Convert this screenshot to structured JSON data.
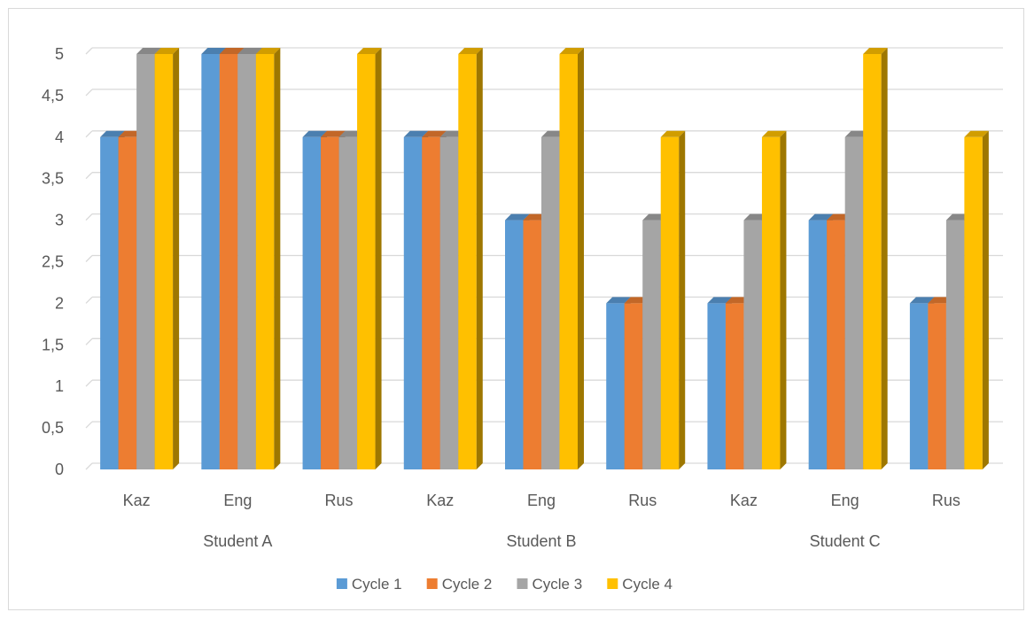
{
  "chart_data": {
    "type": "bar",
    "title": "",
    "xlabel": "",
    "ylabel": "",
    "groups": [
      {
        "label": "Student A",
        "categories": [
          "Kaz",
          "Eng",
          "Rus"
        ]
      },
      {
        "label": "Student B",
        "categories": [
          "Kaz",
          "Eng",
          "Rus"
        ]
      },
      {
        "label": "Student C",
        "categories": [
          "Kaz",
          "Eng",
          "Rus"
        ]
      }
    ],
    "series": [
      {
        "name": "Cycle 1",
        "color": "#5b9bd5",
        "values": [
          4,
          5,
          4,
          4,
          3,
          2,
          2,
          3,
          2
        ]
      },
      {
        "name": "Cycle 2",
        "color": "#ed7d31",
        "values": [
          4,
          5,
          4,
          4,
          3,
          2,
          2,
          3,
          2
        ]
      },
      {
        "name": "Cycle 3",
        "color": "#a5a5a5",
        "values": [
          5,
          5,
          4,
          4,
          4,
          3,
          3,
          4,
          3
        ]
      },
      {
        "name": "Cycle 4",
        "color": "#ffc000",
        "values": [
          5,
          5,
          5,
          5,
          5,
          4,
          4,
          5,
          4
        ]
      }
    ],
    "y_ticks": [
      "0",
      "0,5",
      "1",
      "1,5",
      "2",
      "2,5",
      "3",
      "3,5",
      "4",
      "4,5",
      "5"
    ],
    "ylim": [
      0,
      5
    ],
    "grid": true,
    "legend_position": "bottom"
  }
}
